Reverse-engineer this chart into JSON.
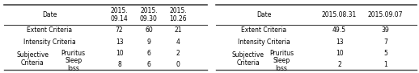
{
  "t1": {
    "header_date": "Date",
    "header_cols": [
      "2015.\n09.14",
      "2015.\n09.30",
      "2015.\n10.26"
    ],
    "row0": {
      "span_label": "Extent Criteria",
      "vals": [
        "72",
        "60",
        "21"
      ]
    },
    "row1": {
      "span_label": "Intensity Criteria",
      "vals": [
        "13",
        "9",
        "4"
      ]
    },
    "row2": {
      "label1": "Subjective\nCriteria",
      "label2": "Pruritus",
      "vals": [
        "10",
        "6",
        "2"
      ]
    },
    "row3": {
      "label1": null,
      "label2": "Sleep\nloss",
      "vals": [
        "8",
        "6",
        "0"
      ]
    }
  },
  "t2": {
    "header_date": "Date",
    "header_cols": [
      "2015.08.31",
      "2015.09.07"
    ],
    "row0": {
      "span_label": "Extent Criteria",
      "vals": [
        "49.5",
        "39"
      ]
    },
    "row1": {
      "span_label": "Intensity Criteria",
      "vals": [
        "13",
        "7"
      ]
    },
    "row2": {
      "label1": "Subjective\nCriteria",
      "label2": "Pruritus",
      "vals": [
        "10",
        "5"
      ]
    },
    "row3": {
      "label1": null,
      "label2": "Sleep\nloss",
      "vals": [
        "2",
        "1"
      ]
    }
  },
  "bg": "#ffffff",
  "lc": "#444444",
  "fs": 5.5
}
